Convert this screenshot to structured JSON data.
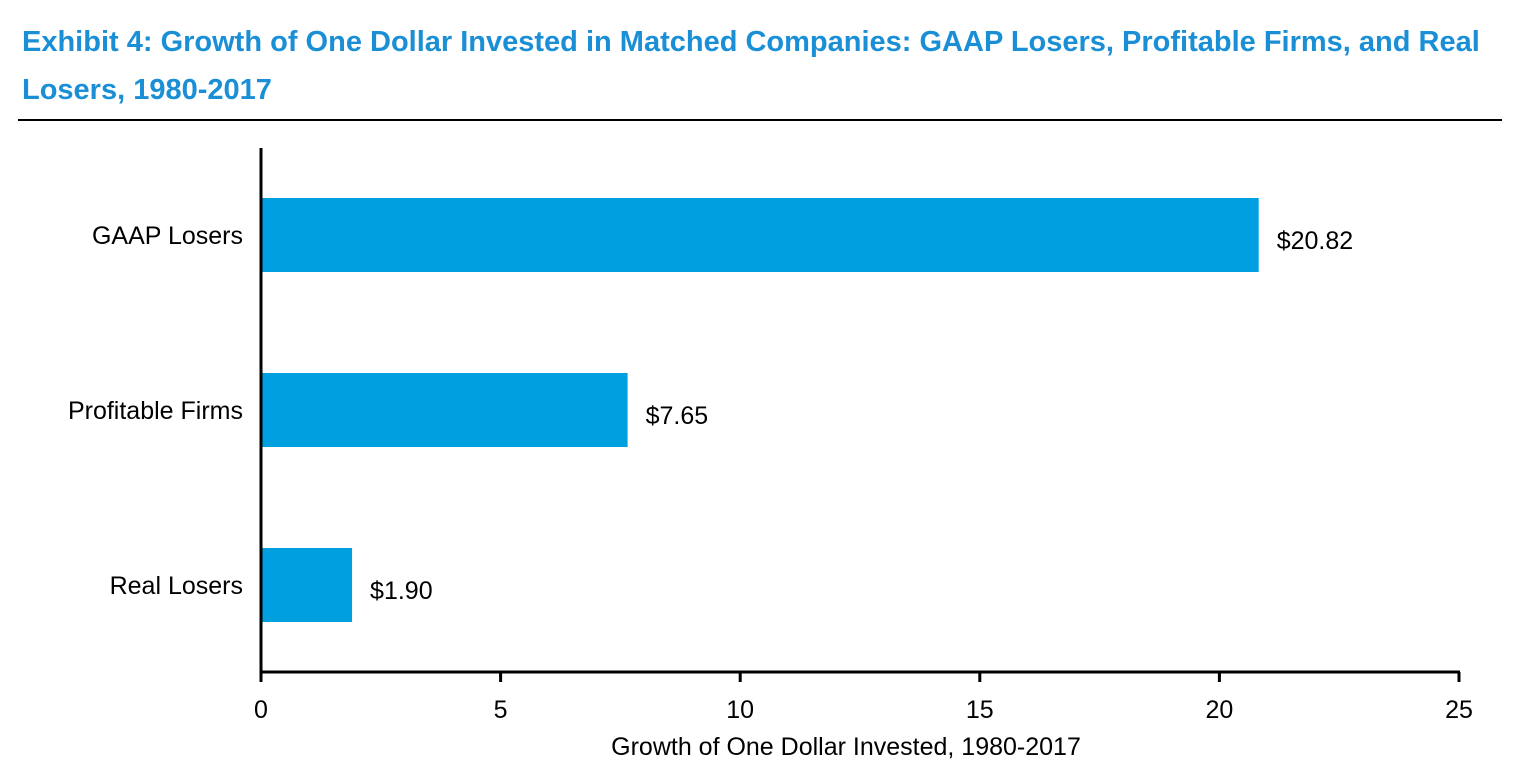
{
  "title": "Exhibit 4: Growth of One Dollar Invested in Matched Companies: GAAP Losers, Profitable Firms, and Real Losers, 1980-2017",
  "colors": {
    "title": "#1a8fd6",
    "bar": "#00a0e0",
    "axis": "#000000"
  },
  "chart_data": {
    "type": "bar",
    "orientation": "horizontal",
    "categories": [
      "GAAP Losers",
      "Profitable Firms",
      "Real Losers"
    ],
    "values": [
      20.82,
      7.65,
      1.9
    ],
    "value_labels": [
      "$20.82",
      "$7.65",
      "$1.90"
    ],
    "title": "Exhibit 4: Growth of One Dollar Invested in Matched Companies: GAAP Losers, Profitable Firms, and Real Losers, 1980-2017",
    "xlabel": "Growth of One Dollar Invested, 1980-2017",
    "ylabel": "",
    "xlim": [
      0,
      25
    ],
    "xticks": [
      0,
      5,
      10,
      15,
      20,
      25
    ],
    "grid": false
  }
}
